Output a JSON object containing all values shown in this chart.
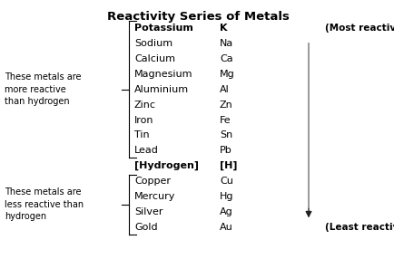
{
  "title": "Reactivity Series of Metals",
  "metals": [
    {
      "name": "Potassium",
      "symbol": "K",
      "bold": true
    },
    {
      "name": "Sodium",
      "symbol": "Na",
      "bold": false
    },
    {
      "name": "Calcium",
      "symbol": "Ca",
      "bold": false
    },
    {
      "name": "Magnesium",
      "symbol": "Mg",
      "bold": false
    },
    {
      "name": "Aluminium",
      "symbol": "Al",
      "bold": false
    },
    {
      "name": "Zinc",
      "symbol": "Zn",
      "bold": false
    },
    {
      "name": "Iron",
      "symbol": "Fe",
      "bold": false
    },
    {
      "name": "Tin",
      "symbol": "Sn",
      "bold": false
    },
    {
      "name": "Lead",
      "symbol": "Pb",
      "bold": false
    },
    {
      "name": "[Hydrogen]",
      "symbol": "[H]",
      "bold": true
    },
    {
      "name": "Copper",
      "symbol": "Cu",
      "bold": false
    },
    {
      "name": "Mercury",
      "symbol": "Hg",
      "bold": false
    },
    {
      "name": "Silver",
      "symbol": "Ag",
      "bold": false
    },
    {
      "name": "Gold",
      "symbol": "Au",
      "bold": false
    }
  ],
  "label_above": "These metals are\nmore reactive\nthan hydrogen",
  "label_below": "These metals are\nless reactive than\nhydrogen",
  "label_most": "(Most reactive metal)",
  "label_least": "(Least reactive metal)",
  "bg_color": "#ffffff",
  "text_color": "#000000",
  "arrow_color": "#888888",
  "arrowhead_color": "#222222",
  "title_fontsize": 9.5,
  "row_fontsize": 8.0,
  "annot_fontsize": 7.0,
  "side_label_fontsize": 7.0,
  "reactive_label_fontsize": 7.5
}
